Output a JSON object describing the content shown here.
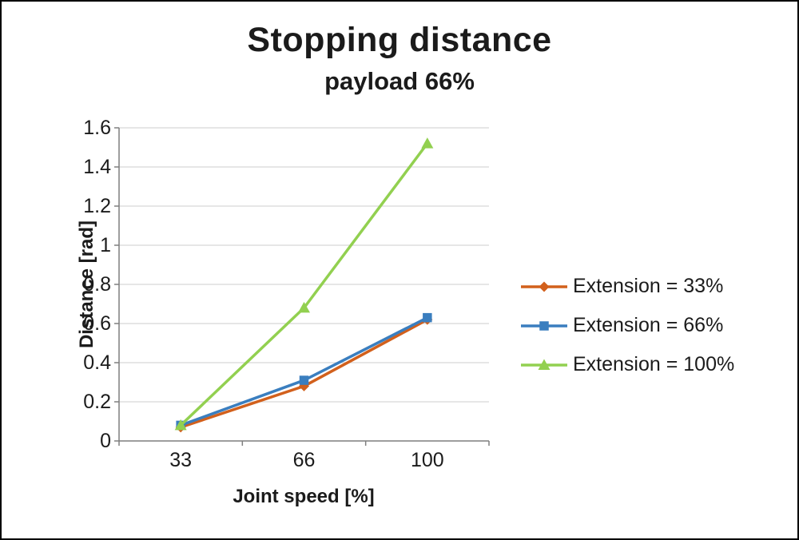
{
  "chart_data": {
    "type": "line",
    "title": "Stopping distance",
    "subtitle": "payload 66%",
    "xlabel": "Joint speed [%]",
    "ylabel": "Distance [rad]",
    "categories": [
      "33",
      "66",
      "100"
    ],
    "ylim": [
      0,
      1.6
    ],
    "ytick_step": 0.2,
    "ytick_labels": [
      "0",
      "0.2",
      "0.4",
      "0.6",
      "0.8",
      "1",
      "1.2",
      "1.4",
      "1.6"
    ],
    "grid": "horizontal",
    "legend_position": "right",
    "series": [
      {
        "name": "Extension = 33%",
        "marker": "diamond",
        "color": "#d2601c",
        "values": [
          0.07,
          0.28,
          0.62
        ]
      },
      {
        "name": "Extension = 66%",
        "marker": "square",
        "color": "#3a7ebf",
        "values": [
          0.08,
          0.31,
          0.63
        ]
      },
      {
        "name": "Extension = 100%",
        "marker": "triangle",
        "color": "#92d050",
        "values": [
          0.08,
          0.68,
          1.52
        ]
      }
    ],
    "colors": {
      "gridline": "#d6d6d6",
      "axis": "#7f7f7f",
      "text": "#1b1b1b",
      "background": "#ffffff",
      "border": "#000000"
    }
  }
}
